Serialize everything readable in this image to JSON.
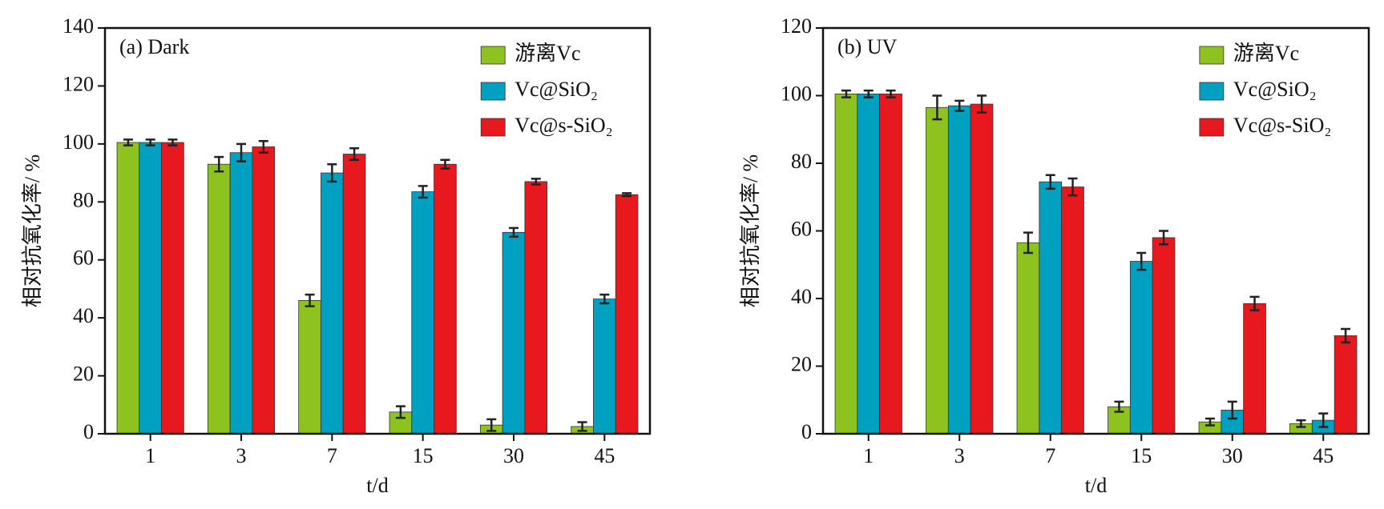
{
  "chart_data": [
    {
      "type": "bar",
      "annotation": "(a)   Dark",
      "xlabel": "t/d",
      "ylabel": "相对抗氧化率/ %",
      "categories": [
        "1",
        "3",
        "7",
        "15",
        "30",
        "45"
      ],
      "ylim": [
        0,
        140
      ],
      "yticks": [
        0,
        20,
        40,
        60,
        80,
        100,
        120,
        140
      ],
      "legend": "upper right",
      "series": [
        {
          "name": "游离Vc",
          "color": "#8dc21f",
          "values": [
            100.5,
            93,
            46,
            7.5,
            3,
            2.5
          ],
          "errors": [
            1,
            2.5,
            2,
            2,
            2,
            1.5
          ]
        },
        {
          "name": "Vc@SiO₂",
          "color": "#00a0c0",
          "values": [
            100.5,
            97,
            90,
            83.5,
            69.5,
            46.5
          ],
          "errors": [
            1,
            3,
            3,
            2,
            1.5,
            1.5
          ]
        },
        {
          "name": "Vc@s-SiO₂",
          "color": "#e8191e",
          "values": [
            100.5,
            99,
            96.5,
            93,
            87,
            82.5
          ],
          "errors": [
            1,
            2,
            2,
            1.5,
            1,
            0.5
          ]
        }
      ]
    },
    {
      "type": "bar",
      "annotation": "(b)   UV",
      "xlabel": "t/d",
      "ylabel": "相对抗氧化率/ %",
      "categories": [
        "1",
        "3",
        "7",
        "15",
        "30",
        "45"
      ],
      "ylim": [
        0,
        120
      ],
      "yticks": [
        0,
        20,
        40,
        60,
        80,
        100,
        120
      ],
      "legend": "upper right",
      "series": [
        {
          "name": "游离Vc",
          "color": "#8dc21f",
          "values": [
            100.5,
            96.5,
            56.5,
            8,
            3.5,
            3
          ],
          "errors": [
            1,
            3.5,
            3,
            1.5,
            1,
            1
          ]
        },
        {
          "name": "Vc@SiO₂",
          "color": "#00a0c0",
          "values": [
            100.5,
            97,
            74.5,
            51,
            7,
            4
          ],
          "errors": [
            1,
            1.5,
            2,
            2.5,
            2.5,
            2
          ]
        },
        {
          "name": "Vc@s-SiO₂",
          "color": "#e8191e",
          "values": [
            100.5,
            97.5,
            73,
            58,
            38.5,
            29
          ],
          "errors": [
            1,
            2.5,
            2.5,
            2,
            2,
            2
          ]
        }
      ]
    }
  ]
}
